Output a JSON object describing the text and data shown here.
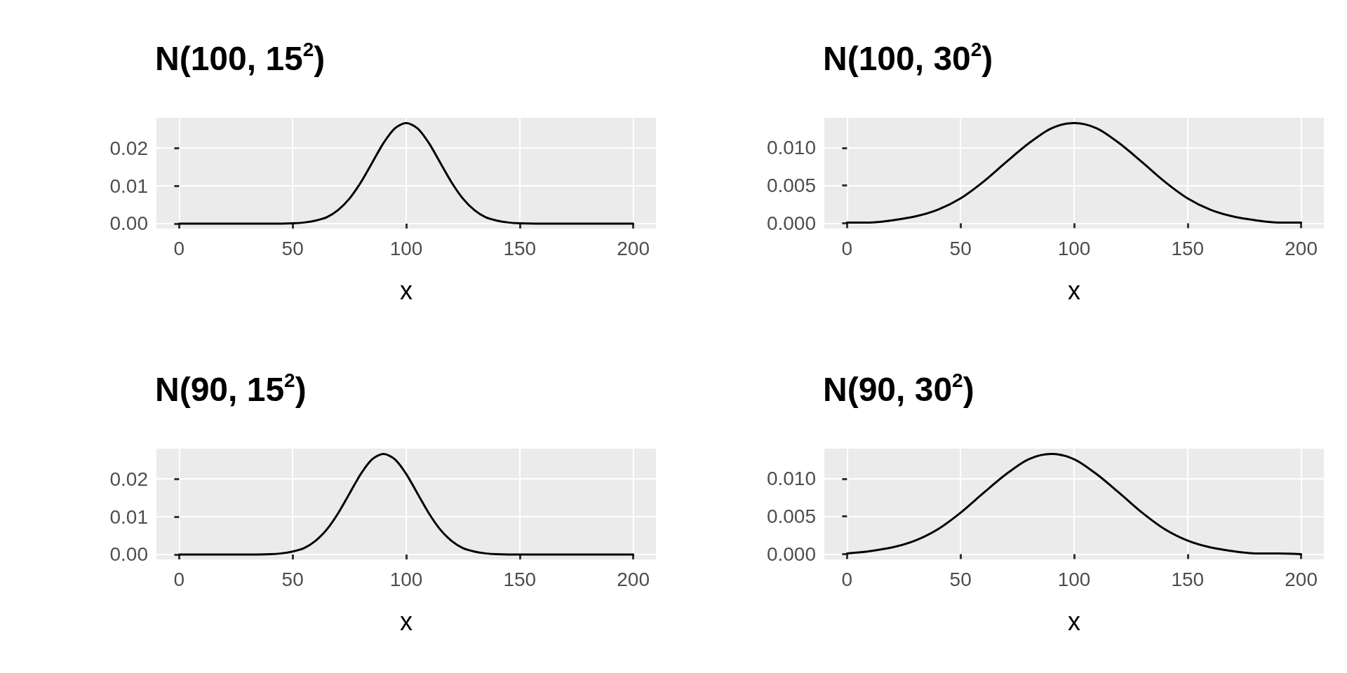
{
  "chart_data": [
    {
      "type": "line",
      "title": "N(100, 15$^{2}$)",
      "xlabel": "x",
      "xlim": [
        -10,
        210
      ],
      "ylim": [
        -0.0013,
        0.028
      ],
      "xticks": [
        0,
        50,
        100,
        150,
        200
      ],
      "yticks": [
        {
          "value": 0,
          "label": "0.00"
        },
        {
          "value": 0.01,
          "label": "0.01"
        },
        {
          "value": 0.02,
          "label": "0.02"
        }
      ],
      "grid": true,
      "series": [
        {
          "color": "#000000",
          "x": [
            0,
            40,
            50,
            55,
            60,
            65,
            70,
            75,
            80,
            85,
            90,
            95,
            100,
            105,
            110,
            115,
            120,
            125,
            130,
            135,
            140,
            145,
            150,
            160,
            200
          ],
          "values": [
            0,
            0,
            0.0001,
            0.0003,
            0.0008,
            0.0017,
            0.0036,
            0.0066,
            0.0109,
            0.0161,
            0.0213,
            0.0252,
            0.0266,
            0.0252,
            0.0213,
            0.0161,
            0.0109,
            0.0066,
            0.0036,
            0.0017,
            0.0008,
            0.0003,
            0.0001,
            0,
            0
          ]
        }
      ]
    },
    {
      "type": "line",
      "title": "N(100, 30$^{2}$)",
      "xlabel": "x",
      "xlim": [
        -10,
        210
      ],
      "ylim": [
        -0.0007,
        0.014
      ],
      "xticks": [
        0,
        50,
        100,
        150,
        200
      ],
      "yticks": [
        {
          "value": 0,
          "label": "0.000"
        },
        {
          "value": 0.005,
          "label": "0.005"
        },
        {
          "value": 0.01,
          "label": "0.010"
        }
      ],
      "grid": true,
      "series": [
        {
          "color": "#000000",
          "x": [
            0,
            10,
            20,
            30,
            40,
            50,
            60,
            70,
            80,
            90,
            100,
            110,
            120,
            130,
            140,
            150,
            160,
            170,
            180,
            190,
            200
          ],
          "values": [
            0.0001,
            0.0001,
            0.0004,
            0.0009,
            0.0018,
            0.0033,
            0.0055,
            0.0081,
            0.0106,
            0.0126,
            0.0133,
            0.0126,
            0.0106,
            0.0081,
            0.0055,
            0.0033,
            0.0018,
            0.0009,
            0.0004,
            0.0001,
            0.0001
          ]
        }
      ]
    },
    {
      "type": "line",
      "title": "N(90, 15$^{2}$)",
      "xlabel": "x",
      "xlim": [
        -10,
        210
      ],
      "ylim": [
        -0.0013,
        0.028
      ],
      "xticks": [
        0,
        50,
        100,
        150,
        200
      ],
      "yticks": [
        {
          "value": 0,
          "label": "0.00"
        },
        {
          "value": 0.01,
          "label": "0.01"
        },
        {
          "value": 0.02,
          "label": "0.02"
        }
      ],
      "grid": true,
      "series": [
        {
          "color": "#000000",
          "x": [
            0,
            30,
            40,
            45,
            50,
            55,
            60,
            65,
            70,
            75,
            80,
            85,
            90,
            95,
            100,
            105,
            110,
            115,
            120,
            125,
            130,
            135,
            140,
            150,
            200
          ],
          "values": [
            0,
            0,
            0.0001,
            0.0003,
            0.0008,
            0.0017,
            0.0036,
            0.0066,
            0.0109,
            0.0161,
            0.0213,
            0.0252,
            0.0266,
            0.0252,
            0.0213,
            0.0161,
            0.0109,
            0.0066,
            0.0036,
            0.0017,
            0.0008,
            0.0003,
            0.0001,
            0,
            0
          ]
        }
      ]
    },
    {
      "type": "line",
      "title": "N(90, 30$^{2}$)",
      "xlabel": "x",
      "xlim": [
        -10,
        210
      ],
      "ylim": [
        -0.0007,
        0.014
      ],
      "xticks": [
        0,
        50,
        100,
        150,
        200
      ],
      "yticks": [
        {
          "value": 0,
          "label": "0.000"
        },
        {
          "value": 0.005,
          "label": "0.005"
        },
        {
          "value": 0.01,
          "label": "0.010"
        }
      ],
      "grid": true,
      "series": [
        {
          "color": "#000000",
          "x": [
            0,
            10,
            20,
            30,
            40,
            50,
            60,
            70,
            80,
            90,
            100,
            110,
            120,
            130,
            140,
            150,
            160,
            170,
            180,
            190,
            200
          ],
          "values": [
            0.0001,
            0.0004,
            0.0009,
            0.0018,
            0.0033,
            0.0055,
            0.0081,
            0.0106,
            0.0126,
            0.0133,
            0.0126,
            0.0106,
            0.0081,
            0.0055,
            0.0033,
            0.0018,
            0.0009,
            0.0004,
            0.0001,
            0.0001,
            0
          ]
        }
      ]
    }
  ]
}
